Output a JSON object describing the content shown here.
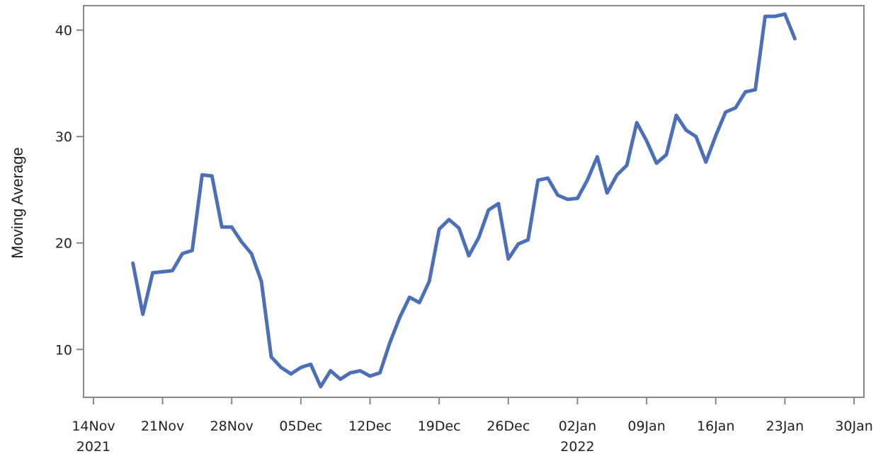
{
  "chart_data": {
    "type": "line",
    "title": "",
    "xlabel": "",
    "ylabel": "Moving Average",
    "x_ticks": [
      {
        "date": "2021-11-14",
        "label": "14Nov",
        "sublabel": "2021"
      },
      {
        "date": "2021-11-21",
        "label": "21Nov",
        "sublabel": ""
      },
      {
        "date": "2021-11-28",
        "label": "28Nov",
        "sublabel": ""
      },
      {
        "date": "2021-12-05",
        "label": "05Dec",
        "sublabel": ""
      },
      {
        "date": "2021-12-12",
        "label": "12Dec",
        "sublabel": ""
      },
      {
        "date": "2021-12-19",
        "label": "19Dec",
        "sublabel": ""
      },
      {
        "date": "2021-12-26",
        "label": "26Dec",
        "sublabel": ""
      },
      {
        "date": "2022-01-02",
        "label": "02Jan",
        "sublabel": "2022"
      },
      {
        "date": "2022-01-09",
        "label": "09Jan",
        "sublabel": ""
      },
      {
        "date": "2022-01-16",
        "label": "16Jan",
        "sublabel": ""
      },
      {
        "date": "2022-01-23",
        "label": "23Jan",
        "sublabel": ""
      },
      {
        "date": "2022-01-30",
        "label": "30Jan",
        "sublabel": ""
      }
    ],
    "y_ticks": [
      10,
      20,
      30,
      40
    ],
    "xlim": [
      "2021-11-13",
      "2022-01-31"
    ],
    "ylim": [
      5.5,
      42.3
    ],
    "grid": false,
    "series": [
      {
        "color": "#4c6fb8",
        "points": [
          [
            "2021-11-18",
            18.1
          ],
          [
            "2021-11-19",
            13.3
          ],
          [
            "2021-11-20",
            17.2
          ],
          [
            "2021-11-21",
            17.3
          ],
          [
            "2021-11-22",
            17.4
          ],
          [
            "2021-11-23",
            19.0
          ],
          [
            "2021-11-24",
            19.3
          ],
          [
            "2021-11-25",
            26.4
          ],
          [
            "2021-11-26",
            26.3
          ],
          [
            "2021-11-27",
            21.5
          ],
          [
            "2021-11-28",
            21.5
          ],
          [
            "2021-11-29",
            20.1
          ],
          [
            "2021-11-30",
            19.0
          ],
          [
            "2021-12-01",
            16.4
          ],
          [
            "2021-12-02",
            9.3
          ],
          [
            "2021-12-03",
            8.3
          ],
          [
            "2021-12-04",
            7.7
          ],
          [
            "2021-12-05",
            8.3
          ],
          [
            "2021-12-06",
            8.6
          ],
          [
            "2021-12-07",
            6.5
          ],
          [
            "2021-12-08",
            8.0
          ],
          [
            "2021-12-09",
            7.2
          ],
          [
            "2021-12-10",
            7.8
          ],
          [
            "2021-12-11",
            8.0
          ],
          [
            "2021-12-12",
            7.5
          ],
          [
            "2021-12-13",
            7.8
          ],
          [
            "2021-12-14",
            10.6
          ],
          [
            "2021-12-15",
            13.0
          ],
          [
            "2021-12-16",
            14.9
          ],
          [
            "2021-12-17",
            14.4
          ],
          [
            "2021-12-18",
            16.4
          ],
          [
            "2021-12-19",
            21.3
          ],
          [
            "2021-12-20",
            22.2
          ],
          [
            "2021-12-21",
            21.4
          ],
          [
            "2021-12-22",
            18.8
          ],
          [
            "2021-12-23",
            20.5
          ],
          [
            "2021-12-24",
            23.1
          ],
          [
            "2021-12-25",
            23.7
          ],
          [
            "2021-12-26",
            18.5
          ],
          [
            "2021-12-27",
            19.9
          ],
          [
            "2021-12-28",
            20.3
          ],
          [
            "2021-12-29",
            25.9
          ],
          [
            "2021-12-30",
            26.1
          ],
          [
            "2021-12-31",
            24.5
          ],
          [
            "2022-01-01",
            24.1
          ],
          [
            "2022-01-02",
            24.2
          ],
          [
            "2022-01-03",
            25.9
          ],
          [
            "2022-01-04",
            28.1
          ],
          [
            "2022-01-05",
            24.7
          ],
          [
            "2022-01-06",
            26.4
          ],
          [
            "2022-01-07",
            27.3
          ],
          [
            "2022-01-08",
            31.3
          ],
          [
            "2022-01-09",
            29.6
          ],
          [
            "2022-01-10",
            27.5
          ],
          [
            "2022-01-11",
            28.3
          ],
          [
            "2022-01-12",
            32.0
          ],
          [
            "2022-01-13",
            30.6
          ],
          [
            "2022-01-14",
            30.0
          ],
          [
            "2022-01-15",
            27.6
          ],
          [
            "2022-01-16",
            30.1
          ],
          [
            "2022-01-17",
            32.3
          ],
          [
            "2022-01-18",
            32.7
          ],
          [
            "2022-01-19",
            34.2
          ],
          [
            "2022-01-20",
            34.4
          ],
          [
            "2022-01-21",
            41.3
          ],
          [
            "2022-01-22",
            41.3
          ],
          [
            "2022-01-23",
            41.5
          ],
          [
            "2022-01-24",
            39.2
          ]
        ]
      }
    ]
  }
}
